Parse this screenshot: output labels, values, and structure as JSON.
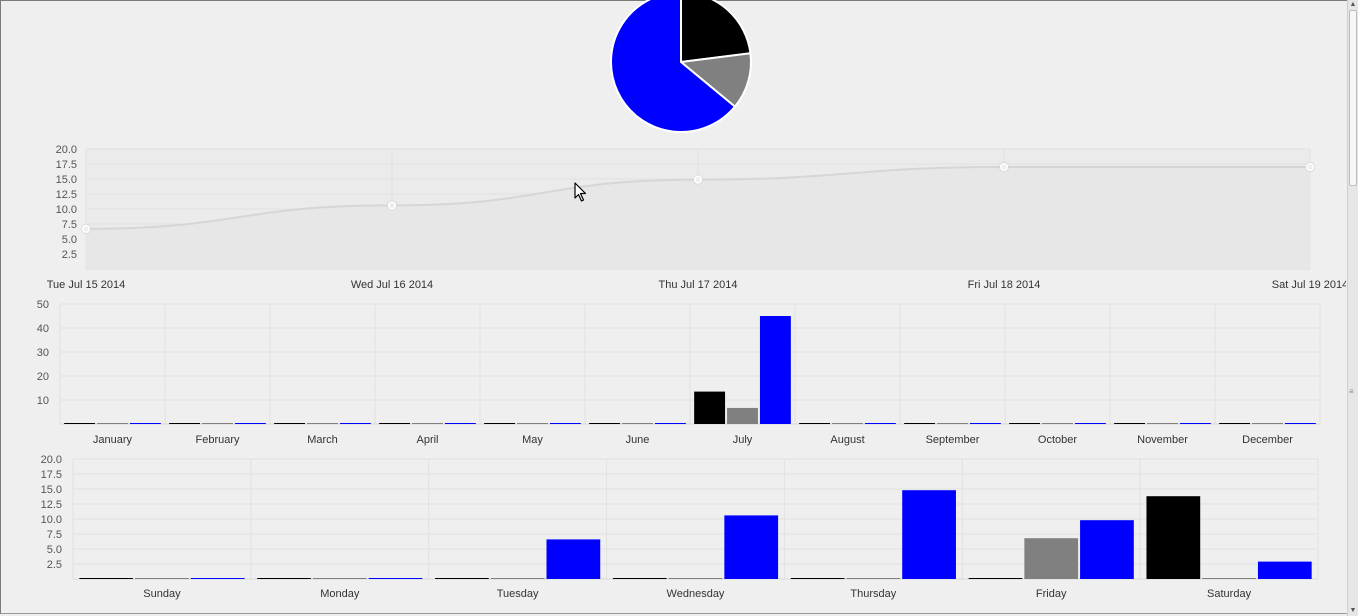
{
  "colors": {
    "series1": "#000000",
    "series2": "#808080",
    "series3": "#0000ff",
    "line": "#d6d6d6",
    "grid": "#e2e2e2",
    "background": "#efefef"
  },
  "cursor_icon": "mouse-pointer-icon",
  "chart_data": [
    {
      "type": "pie",
      "values": [
        23,
        13,
        64
      ],
      "colors": [
        "#000000",
        "#808080",
        "#0000ff"
      ]
    },
    {
      "type": "area",
      "x": [
        "Tue Jul 15 2014",
        "Wed Jul 16 2014",
        "Thu Jul 17 2014",
        "Fri Jul 18 2014",
        "Sat Jul 19 2014"
      ],
      "y": [
        6.7,
        10.6,
        14.9,
        17.0,
        17.0
      ],
      "yticks": [
        "20.0",
        "17.5",
        "15.0",
        "12.5",
        "10.0",
        "7.5",
        "5.0",
        "2.5"
      ],
      "ylim": [
        0,
        20
      ],
      "grid": true
    },
    {
      "type": "bar",
      "categories": [
        "January",
        "February",
        "March",
        "April",
        "May",
        "June",
        "July",
        "August",
        "September",
        "October",
        "November",
        "December"
      ],
      "series": [
        {
          "color": "#000000",
          "values": [
            0,
            0,
            0,
            0,
            0,
            0,
            13.5,
            0,
            0,
            0,
            0,
            0
          ]
        },
        {
          "color": "#808080",
          "values": [
            0,
            0,
            0,
            0,
            0,
            0,
            6.7,
            0,
            0,
            0,
            0,
            0
          ]
        },
        {
          "color": "#0000ff",
          "values": [
            0,
            0,
            0,
            0,
            0,
            0,
            45,
            0,
            0,
            0,
            0,
            0
          ]
        }
      ],
      "yticks": [
        "50",
        "40",
        "30",
        "20",
        "10"
      ],
      "ylim": [
        0,
        50
      ],
      "grid": true
    },
    {
      "type": "bar",
      "categories": [
        "Sunday",
        "Monday",
        "Tuesday",
        "Wednesday",
        "Thursday",
        "Friday",
        "Saturday"
      ],
      "series": [
        {
          "color": "#000000",
          "values": [
            0,
            0,
            0,
            0,
            0,
            0,
            13.8
          ]
        },
        {
          "color": "#808080",
          "values": [
            0,
            0,
            0,
            0,
            0,
            6.8,
            0
          ]
        },
        {
          "color": "#0000ff",
          "values": [
            0,
            0,
            6.6,
            10.6,
            14.8,
            9.8,
            2.9
          ]
        }
      ],
      "yticks": [
        "20.0",
        "17.5",
        "15.0",
        "12.5",
        "10.0",
        "7.5",
        "5.0",
        "2.5"
      ],
      "ylim": [
        0,
        20
      ],
      "grid": true
    }
  ]
}
